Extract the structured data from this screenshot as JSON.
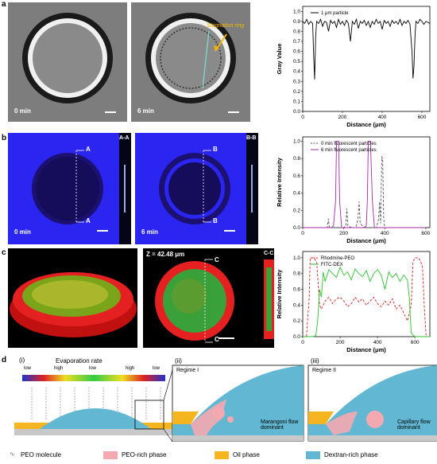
{
  "panels": {
    "a": "a",
    "b": "b",
    "c": "c",
    "d": "d"
  },
  "row_a": {
    "img1_time": "0 min",
    "img2_time": "6 min",
    "img2_annotation": "Stagnation ring"
  },
  "row_b": {
    "img1_time": "0 min",
    "img2_time": "6 min",
    "img1_section": "A-A",
    "img2_section": "B-B",
    "img1_marker": "A",
    "img2_marker": "B"
  },
  "row_c": {
    "z_label": "Z = 42.48 μm",
    "section": "C-C",
    "marker": "C"
  },
  "row_d": {
    "sub_i": "(i)",
    "sub_ii": "(ii)",
    "sub_iii": "(iii)",
    "evap_title": "Evaporation rate",
    "evap_scale": [
      "low",
      "high",
      "low",
      "high",
      "low"
    ],
    "regime1": "Regime I",
    "regime2": "Regime II",
    "flow1": "Marangoni flow dominant",
    "flow2": "Capillary flow dominant",
    "legend": [
      "PEO molecule",
      "PEO-rich phase",
      "Oil phase",
      "Dextran-rich phase"
    ],
    "colors": {
      "peo_rich": "#f4a9b0",
      "oil": "#f5b521",
      "dextran": "#62b8d3"
    }
  },
  "chart_data": [
    {
      "type": "line",
      "xlabel": "Distance (μm)",
      "ylabel": "Gray Value",
      "xticks": [
        0,
        200,
        400,
        600
      ],
      "yticks": [
        "0.0",
        "0.1",
        "0.2",
        "0.3",
        "0.4",
        "0.5",
        "0.6",
        "0.7",
        "0.8",
        "0.9",
        "1.0"
      ],
      "xlim": [
        0,
        640
      ],
      "ylim": [
        0,
        1.05
      ],
      "series": [
        {
          "name": "1 μm particle",
          "color": "#000000",
          "x": [
            0,
            10,
            20,
            30,
            40,
            50,
            55,
            60,
            65,
            70,
            80,
            90,
            100,
            110,
            120,
            130,
            140,
            150,
            160,
            170,
            180,
            190,
            200,
            210,
            220,
            230,
            240,
            250,
            260,
            270,
            280,
            290,
            300,
            310,
            320,
            330,
            340,
            350,
            360,
            370,
            380,
            390,
            400,
            410,
            420,
            430,
            440,
            450,
            460,
            470,
            480,
            490,
            500,
            510,
            520,
            530,
            540,
            550,
            555,
            560,
            565,
            570,
            580,
            590,
            600,
            610,
            620,
            630,
            640
          ],
          "y": [
            0.9,
            0.88,
            0.92,
            0.87,
            0.9,
            0.88,
            0.55,
            0.32,
            0.75,
            0.9,
            0.88,
            0.92,
            0.85,
            0.9,
            0.89,
            0.8,
            0.91,
            0.88,
            0.9,
            0.84,
            0.92,
            0.87,
            0.9,
            0.86,
            0.91,
            0.88,
            0.7,
            0.9,
            0.87,
            0.92,
            0.83,
            0.9,
            0.88,
            0.91,
            0.86,
            0.9,
            0.84,
            0.9,
            0.87,
            0.92,
            0.88,
            0.9,
            0.82,
            0.91,
            0.88,
            0.9,
            0.85,
            0.91,
            0.88,
            0.9,
            0.87,
            0.92,
            0.86,
            0.9,
            0.88,
            0.91,
            0.87,
            0.6,
            0.33,
            0.45,
            0.75,
            0.9,
            0.88,
            0.92,
            0.9,
            0.87,
            0.9,
            0.89,
            0.88
          ]
        }
      ]
    },
    {
      "type": "line",
      "xlabel": "Distance (μm)",
      "ylabel": "Relative Intensity",
      "xticks": [
        0,
        200,
        400,
        600
      ],
      "yticks": [
        "0.0",
        "0.2",
        "0.4",
        "0.6",
        "0.8",
        "1.0"
      ],
      "xlim": [
        0,
        620
      ],
      "ylim": [
        0,
        1.05
      ],
      "series": [
        {
          "name": "0 min fluorescent particles",
          "color": "#555555",
          "dash": true,
          "x": [
            0,
            100,
            120,
            125,
            130,
            200,
            210,
            215,
            220,
            240,
            260,
            270,
            275,
            280,
            300,
            340,
            360,
            370,
            375,
            380,
            385,
            390,
            395,
            400,
            420,
            460,
            500,
            520,
            600
          ],
          "y": [
            0,
            0,
            0,
            0.1,
            0,
            0,
            0.02,
            0.22,
            0.02,
            0,
            0,
            0.12,
            0.3,
            0.05,
            0,
            0,
            0,
            0.1,
            0.3,
            0.05,
            0.82,
            0.8,
            0.1,
            0,
            0,
            0,
            0,
            0,
            0
          ]
        },
        {
          "name": "6 min fluorescent particles",
          "color": "#a32aa3",
          "x": [
            0,
            140,
            150,
            160,
            165,
            175,
            180,
            190,
            300,
            310,
            315,
            320,
            330,
            340,
            350,
            420,
            500,
            600
          ],
          "y": [
            0,
            0,
            0.02,
            0.3,
            1.0,
            1.0,
            0.3,
            0,
            0,
            0.02,
            0.3,
            1.0,
            1.0,
            0.3,
            0,
            0,
            0,
            0
          ]
        }
      ]
    },
    {
      "type": "line",
      "xlabel": "Distance (μm)",
      "ylabel": "Relative Intensity",
      "xticks": [
        0,
        200,
        400,
        600
      ],
      "yticks": [
        "0.0",
        "0.2",
        "0.4",
        "0.6",
        "0.8",
        "1.0"
      ],
      "xlim": [
        0,
        680
      ],
      "ylim": [
        0,
        1.08
      ],
      "series": [
        {
          "name": "Rhodmine-PEO",
          "color": "#e0201b",
          "dash": true,
          "x": [
            0,
            20,
            35,
            40,
            60,
            75,
            90,
            100,
            120,
            140,
            160,
            180,
            200,
            220,
            240,
            260,
            280,
            300,
            320,
            340,
            360,
            380,
            400,
            420,
            440,
            460,
            480,
            500,
            520,
            540,
            560,
            580,
            590,
            600,
            620,
            640,
            650,
            660,
            680
          ],
          "y": [
            0,
            0,
            0.5,
            1.0,
            1.0,
            0.95,
            0.4,
            0.35,
            0.45,
            0.5,
            0.42,
            0.48,
            0.5,
            0.45,
            0.38,
            0.42,
            0.5,
            0.44,
            0.48,
            0.4,
            0.45,
            0.5,
            0.42,
            0.38,
            0.45,
            0.4,
            0.48,
            0.35,
            0.4,
            0.3,
            0.2,
            0.4,
            0.95,
            1.0,
            1.0,
            0.9,
            0.4,
            0,
            0
          ]
        },
        {
          "name": "FITC-DEX",
          "color": "#2ec22e",
          "x": [
            0,
            60,
            70,
            75,
            80,
            90,
            100,
            110,
            120,
            140,
            160,
            180,
            200,
            220,
            240,
            260,
            280,
            300,
            320,
            340,
            360,
            380,
            400,
            420,
            440,
            460,
            480,
            500,
            520,
            540,
            560,
            570,
            580,
            590,
            600,
            620,
            680
          ],
          "y": [
            0,
            0,
            0.02,
            0.1,
            0.2,
            0.6,
            0.5,
            0.82,
            0.7,
            0.85,
            0.8,
            0.75,
            0.88,
            0.78,
            0.82,
            0.72,
            0.86,
            0.8,
            0.76,
            0.84,
            0.7,
            0.8,
            0.85,
            0.78,
            0.6,
            0.82,
            0.75,
            0.8,
            0.7,
            0.78,
            0.72,
            0.5,
            0.05,
            0.02,
            0,
            0,
            0
          ]
        }
      ]
    }
  ]
}
